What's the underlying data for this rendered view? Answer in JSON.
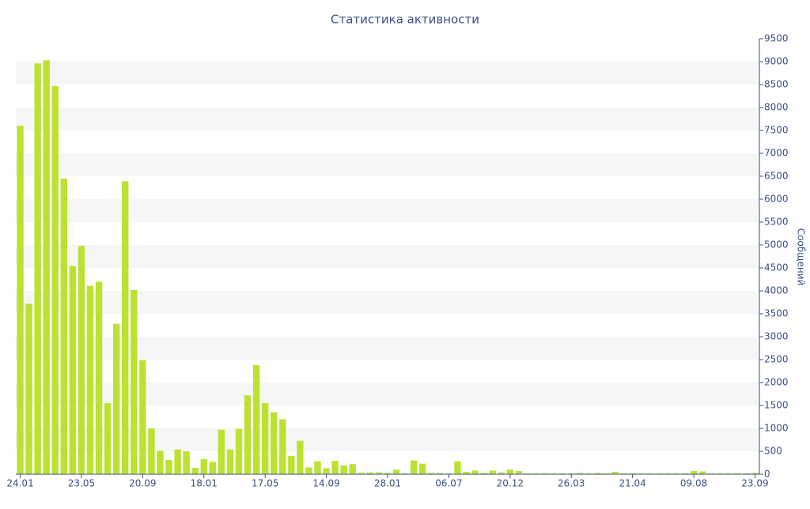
{
  "chart_data": {
    "type": "bar",
    "title": "Статистика активности",
    "y_label": "Сообщений",
    "categories": [
      "24.01",
      null,
      null,
      null,
      null,
      null,
      null,
      "23.05",
      null,
      null,
      null,
      null,
      null,
      null,
      "20.09",
      null,
      null,
      null,
      null,
      null,
      null,
      "18.01",
      null,
      null,
      null,
      null,
      null,
      null,
      "17.05",
      null,
      null,
      null,
      null,
      null,
      null,
      "14.09",
      null,
      null,
      null,
      null,
      null,
      null,
      "28.01",
      null,
      null,
      null,
      null,
      null,
      null,
      "06.07",
      null,
      null,
      null,
      null,
      null,
      null,
      "20.12",
      null,
      null,
      null,
      null,
      null,
      null,
      "26.03",
      null,
      null,
      null,
      null,
      null,
      null,
      "21.04",
      null,
      null,
      null,
      null,
      null,
      null,
      "09.08",
      null,
      null,
      null,
      null,
      null,
      null,
      "23.09"
    ],
    "values": [
      7600,
      3720,
      8960,
      9030,
      8470,
      6450,
      4540,
      4980,
      4110,
      4200,
      1550,
      3280,
      6390,
      4020,
      2490,
      1000,
      510,
      310,
      540,
      500,
      140,
      330,
      270,
      970,
      540,
      990,
      1720,
      2380,
      1550,
      1350,
      1200,
      400,
      730,
      150,
      280,
      130,
      290,
      190,
      220,
      30,
      40,
      40,
      30,
      100,
      20,
      300,
      230,
      30,
      30,
      20,
      280,
      50,
      80,
      30,
      80,
      40,
      100,
      70,
      20,
      20,
      20,
      20,
      20,
      20,
      30,
      20,
      30,
      20,
      50,
      20,
      20,
      20,
      20,
      20,
      20,
      20,
      20,
      70,
      60,
      20,
      20,
      20,
      20,
      20,
      30
    ],
    "color": "#bce231",
    "ylim": [
      0,
      9500
    ],
    "yticks": [
      0,
      500,
      1000,
      1500,
      2000,
      2500,
      3000,
      3500,
      4000,
      4500,
      5000,
      5500,
      6000,
      6500,
      7000,
      7500,
      8000,
      8500,
      9000,
      9500
    ],
    "grid": true
  }
}
